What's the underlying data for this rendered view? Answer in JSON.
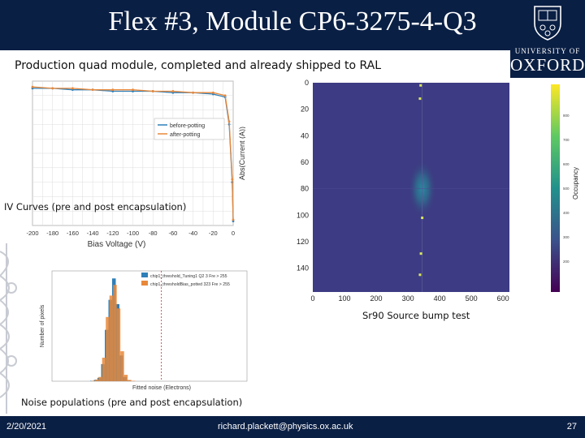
{
  "slide": {
    "title": "Flex #3, Module CP6-3275-4-Q3",
    "subtitle": "Production quad module, completed and already shipped to RAL",
    "logo": {
      "university": "UNIVERSITY OF",
      "name": "OXFORD",
      "icon": "oxford-crest-icon"
    },
    "captions": {
      "iv": "IV Curves (pre and post encapsulation)",
      "source": "Sr90 Source bump test",
      "noise": "Noise populations (pre and post encapsulation)"
    },
    "footer": {
      "date": "2/20/2021",
      "email": "richard.plackett@physics.ox.ac.uk",
      "page": "27"
    },
    "colors": {
      "navy": "#0a1f44",
      "blue_series": "#2f7fb8",
      "orange_series": "#e8883a",
      "threshold_line": "#d33333"
    }
  },
  "chart_data": [
    {
      "type": "line",
      "xlabel": "Bias Voltage (V)",
      "ylabel": "Abs(Current (A))",
      "xticks": [
        "-200",
        "-180",
        "-160",
        "-140",
        "-120",
        "-100",
        "-80",
        "-60",
        "-40",
        "-20",
        "0"
      ],
      "xlim": [
        -200,
        0
      ],
      "ylim": [
        0,
        10
      ],
      "grid": true,
      "legend_position": "center-right",
      "series": [
        {
          "name": "before-potting",
          "color": "#2f7fb8",
          "x": [
            -200,
            -180,
            -160,
            -140,
            -120,
            -100,
            -80,
            -60,
            -40,
            -20,
            -8,
            -4,
            -1,
            0
          ],
          "y": [
            9.5,
            9.5,
            9.4,
            9.4,
            9.3,
            9.3,
            9.3,
            9.2,
            9.2,
            9.1,
            8.9,
            7.0,
            3.0,
            0.3
          ]
        },
        {
          "name": "after-potting",
          "color": "#e8883a",
          "x": [
            -200,
            -180,
            -160,
            -140,
            -120,
            -100,
            -80,
            -60,
            -40,
            -20,
            -8,
            -4,
            -1,
            0
          ],
          "y": [
            9.6,
            9.5,
            9.5,
            9.4,
            9.4,
            9.4,
            9.3,
            9.3,
            9.2,
            9.2,
            9.0,
            7.2,
            3.2,
            0.4
          ]
        }
      ]
    },
    {
      "type": "heatmap",
      "xticks": [
        "0",
        "100",
        "200",
        "300",
        "400",
        "500",
        "600"
      ],
      "yticks": [
        "0",
        "20",
        "40",
        "60",
        "80",
        "100",
        "120",
        "140"
      ],
      "xlim": [
        0,
        620
      ],
      "ylim": [
        0,
        158
      ],
      "colorbar_label": "Occupancy",
      "colorscale": "viridis",
      "hotspot_center": [
        345,
        80
      ],
      "hotspot_radius": [
        45,
        22
      ]
    },
    {
      "type": "bar",
      "xlabel": "Fitted noise (Electrons)",
      "ylabel": "Number of pixels",
      "threshold_x": 0.56,
      "series": [
        {
          "name": "chip1_threshold_Tuning1 Q2 3 Fre > 255",
          "color": "#2f7fb8",
          "values": [
            0,
            0,
            1,
            3,
            8,
            40,
            120,
            190,
            240,
            180,
            60,
            10,
            2,
            0,
            0
          ]
        },
        {
          "name": "chip1_thresholdBias_potted 323 Fre > 255",
          "color": "#e8883a",
          "values": [
            0,
            0,
            1,
            4,
            10,
            55,
            150,
            200,
            225,
            170,
            70,
            15,
            3,
            1,
            0
          ]
        }
      ],
      "ylim": [
        0,
        250
      ]
    }
  ]
}
